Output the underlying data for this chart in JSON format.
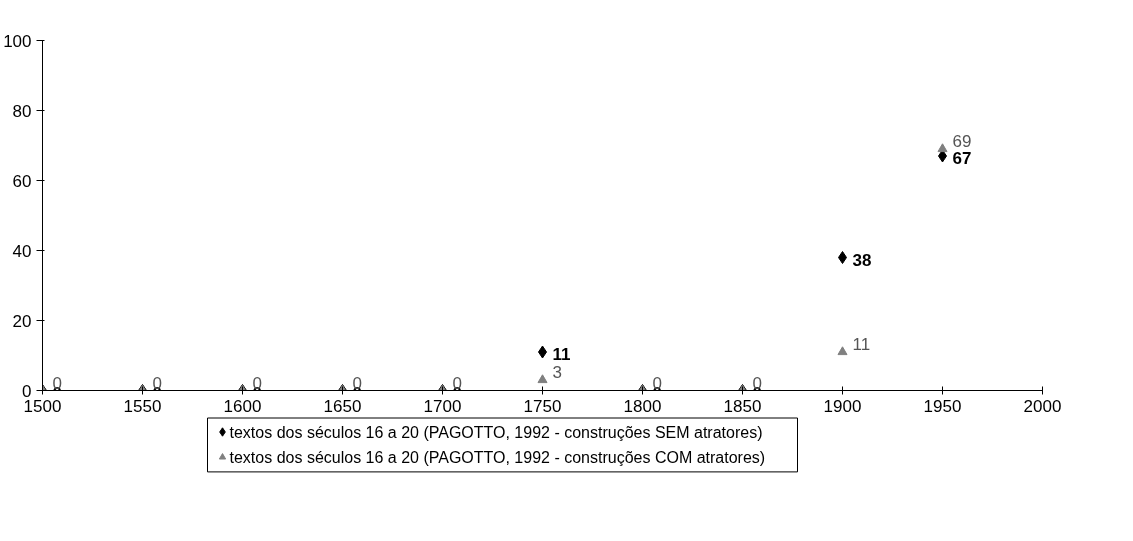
{
  "chart_data": {
    "type": "scatter",
    "x": [
      1500,
      1550,
      1600,
      1650,
      1700,
      1750,
      1800,
      1850,
      1900,
      1950
    ],
    "series": [
      {
        "name": "textos dos séculos 16 a 20 (PAGOTTO, 1992 - construções SEM atratores)",
        "color": "#000000",
        "marker": "diamond",
        "values": [
          0,
          0,
          0,
          0,
          0,
          11,
          0,
          0,
          38,
          67
        ]
      },
      {
        "name": "textos dos séculos 16 a 20 (PAGOTTO, 1992 - construções COM atratores)",
        "color": "#808080",
        "marker": "triangle",
        "values": [
          0,
          0,
          0,
          0,
          0,
          3,
          0,
          0,
          11,
          69
        ]
      }
    ],
    "xlim": [
      1500,
      2000
    ],
    "xticks": [
      1500,
      1550,
      1600,
      1650,
      1700,
      1750,
      1800,
      1850,
      1900,
      1950,
      2000
    ],
    "ylim": [
      0,
      100
    ],
    "yticks": [
      0,
      20,
      40,
      60,
      80,
      100
    ],
    "grid": false,
    "legend": "bottom",
    "data_labels": true
  }
}
